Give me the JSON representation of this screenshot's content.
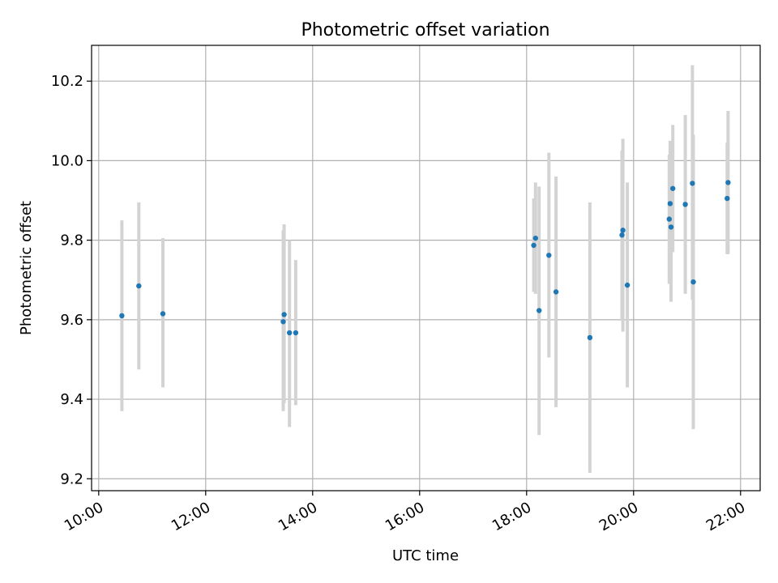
{
  "chart_data": {
    "type": "scatter",
    "title": "Photometric offset variation",
    "xlabel": "UTC time",
    "ylabel": "Photometric offset",
    "xlim": [
      "09:52",
      "22:22"
    ],
    "ylim": [
      9.17,
      10.29
    ],
    "grid": true,
    "x_ticks": [
      "10:00",
      "12:00",
      "14:00",
      "16:00",
      "18:00",
      "20:00",
      "22:00"
    ],
    "y_ticks": [
      "9.2",
      "9.4",
      "9.6",
      "9.8",
      "10.0",
      "10.2"
    ],
    "colors": {
      "point": "#1f77b4",
      "errorbar": "#d3d3d3",
      "grid": "#b0b0b0"
    },
    "series": [
      {
        "points": [
          {
            "x": "10:26",
            "y": 9.61,
            "lo": 9.37,
            "hi": 9.85
          },
          {
            "x": "10:45",
            "y": 9.685,
            "lo": 9.475,
            "hi": 9.895
          },
          {
            "x": "11:12",
            "y": 9.615,
            "lo": 9.43,
            "hi": 9.805
          },
          {
            "x": "13:27",
            "y": 9.595,
            "lo": 9.37,
            "hi": 9.825
          },
          {
            "x": "13:28",
            "y": 9.613,
            "lo": 9.39,
            "hi": 9.84
          },
          {
            "x": "13:34",
            "y": 9.567,
            "lo": 9.33,
            "hi": 9.8
          },
          {
            "x": "13:41",
            "y": 9.567,
            "lo": 9.385,
            "hi": 9.75
          },
          {
            "x": "18:08",
            "y": 9.787,
            "lo": 9.67,
            "hi": 9.905
          },
          {
            "x": "18:10",
            "y": 9.805,
            "lo": 9.665,
            "hi": 9.945
          },
          {
            "x": "18:14",
            "y": 9.623,
            "lo": 9.31,
            "hi": 9.935
          },
          {
            "x": "18:25",
            "y": 9.762,
            "lo": 9.505,
            "hi": 10.02
          },
          {
            "x": "18:33",
            "y": 9.67,
            "lo": 9.38,
            "hi": 9.96
          },
          {
            "x": "19:11",
            "y": 9.555,
            "lo": 9.215,
            "hi": 9.895
          },
          {
            "x": "19:47",
            "y": 9.813,
            "lo": 9.6,
            "hi": 10.025
          },
          {
            "x": "19:48",
            "y": 9.825,
            "lo": 9.57,
            "hi": 10.055
          },
          {
            "x": "19:53",
            "y": 9.687,
            "lo": 9.43,
            "hi": 9.945
          },
          {
            "x": "20:40",
            "y": 9.853,
            "lo": 9.69,
            "hi": 10.015
          },
          {
            "x": "20:41",
            "y": 9.892,
            "lo": 9.735,
            "hi": 10.05
          },
          {
            "x": "20:42",
            "y": 9.833,
            "lo": 9.645,
            "hi": 10.02
          },
          {
            "x": "20:44",
            "y": 9.93,
            "lo": 9.77,
            "hi": 10.09
          },
          {
            "x": "20:58",
            "y": 9.89,
            "lo": 9.665,
            "hi": 10.115
          },
          {
            "x": "21:06",
            "y": 9.943,
            "lo": 9.65,
            "hi": 10.24
          },
          {
            "x": "21:07",
            "y": 9.695,
            "lo": 9.325,
            "hi": 10.065
          },
          {
            "x": "21:45",
            "y": 9.905,
            "lo": 9.765,
            "hi": 10.045
          },
          {
            "x": "21:46",
            "y": 9.945,
            "lo": 9.765,
            "hi": 10.125
          }
        ]
      }
    ]
  }
}
